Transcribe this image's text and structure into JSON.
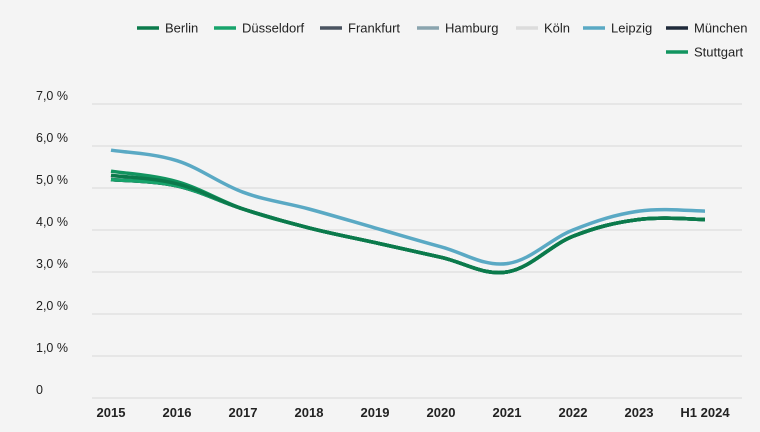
{
  "chart_data": {
    "type": "line",
    "title": "",
    "xlabel": "",
    "ylabel": "",
    "categories": [
      "2015",
      "2016",
      "2017",
      "2018",
      "2019",
      "2020",
      "2021",
      "2022",
      "2023",
      "H1 2024"
    ],
    "y_ticks": [
      "0",
      "1,0 %",
      "2,0 %",
      "3,0 %",
      "4,0 %",
      "5,0 %",
      "6,0 %",
      "7,0 %"
    ],
    "ylim": [
      0,
      7
    ],
    "grid": true,
    "legend_position": "top-right",
    "series": [
      {
        "name": "Berlin",
        "color": "#0b7a4b",
        "values": [
          5.3,
          5.1,
          4.5,
          4.05,
          3.7,
          3.35,
          3.0,
          3.85,
          4.25,
          4.25
        ]
      },
      {
        "name": "Düsseldorf",
        "color": "#17a36b",
        "values": [
          5.2,
          5.05,
          4.5,
          4.05,
          3.7,
          3.35,
          3.0,
          3.85,
          4.25,
          4.25
        ]
      },
      {
        "name": "Frankfurt",
        "color": "#4a5360",
        "values": [
          5.2,
          5.05,
          4.5,
          4.05,
          3.7,
          3.35,
          3.0,
          3.85,
          4.25,
          4.25
        ]
      },
      {
        "name": "Hamburg",
        "color": "#8aa4ae",
        "values": [
          5.3,
          5.1,
          4.5,
          4.05,
          3.7,
          3.35,
          3.0,
          3.85,
          4.25,
          4.25
        ]
      },
      {
        "name": "Köln",
        "color": "#dcdcdc",
        "values": [
          5.25,
          5.1,
          4.5,
          4.05,
          3.7,
          3.35,
          3.0,
          3.85,
          4.25,
          4.25
        ]
      },
      {
        "name": "Leipzig",
        "color": "#5aa9c4",
        "values": [
          5.9,
          5.65,
          4.9,
          4.5,
          4.05,
          3.6,
          3.2,
          4.0,
          4.45,
          4.45
        ]
      },
      {
        "name": "München",
        "color": "#1f2a3a",
        "values": [
          5.2,
          5.05,
          4.5,
          4.05,
          3.7,
          3.35,
          3.0,
          3.85,
          4.25,
          4.25
        ]
      },
      {
        "name": "Stuttgart",
        "color": "#11945f",
        "values": [
          5.4,
          5.15,
          4.5,
          4.05,
          3.7,
          3.35,
          3.0,
          3.85,
          4.25,
          4.25
        ]
      }
    ]
  }
}
